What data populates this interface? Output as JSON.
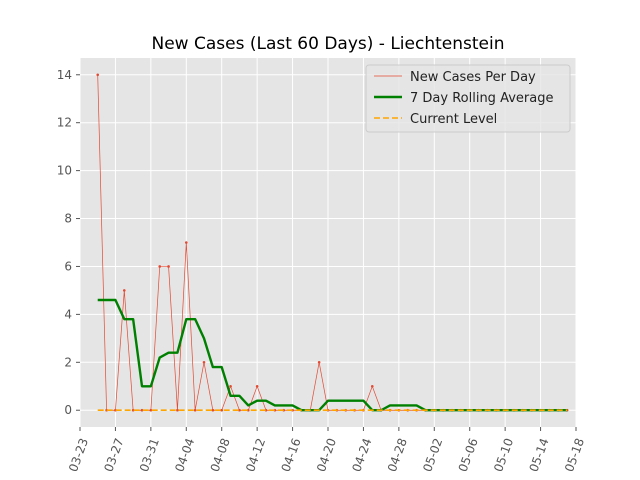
{
  "chart_data": {
    "type": "line",
    "title": "New Cases (Last 60 Days) - Liechtenstein",
    "xlabel": "",
    "ylabel": "",
    "x_axis": {
      "type": "date",
      "range": [
        "2020-03-23",
        "2020-05-18"
      ],
      "tick_labels": [
        "03-23",
        "03-27",
        "03-31",
        "04-04",
        "04-08",
        "04-12",
        "04-16",
        "04-20",
        "04-24",
        "04-28",
        "05-02",
        "05-06",
        "05-10",
        "05-14",
        "05-18"
      ],
      "tick_dates": [
        "2020-03-23",
        "2020-03-27",
        "2020-03-31",
        "2020-04-04",
        "2020-04-08",
        "2020-04-12",
        "2020-04-16",
        "2020-04-20",
        "2020-04-24",
        "2020-04-28",
        "2020-05-02",
        "2020-05-06",
        "2020-05-10",
        "2020-05-14",
        "2020-05-18"
      ]
    },
    "y_axis": {
      "range": [
        -0.7,
        14.7
      ],
      "ticks": [
        0,
        2,
        4,
        6,
        8,
        10,
        12,
        14
      ],
      "tick_labels": [
        "0",
        "2",
        "4",
        "6",
        "8",
        "10",
        "12",
        "14"
      ]
    },
    "grid": true,
    "legend": {
      "placement": "top-right"
    },
    "x": [
      "2020-03-25",
      "2020-03-26",
      "2020-03-27",
      "2020-03-28",
      "2020-03-29",
      "2020-03-30",
      "2020-03-31",
      "2020-04-01",
      "2020-04-02",
      "2020-04-03",
      "2020-04-04",
      "2020-04-05",
      "2020-04-06",
      "2020-04-07",
      "2020-04-08",
      "2020-04-09",
      "2020-04-10",
      "2020-04-11",
      "2020-04-12",
      "2020-04-13",
      "2020-04-14",
      "2020-04-15",
      "2020-04-16",
      "2020-04-17",
      "2020-04-18",
      "2020-04-19",
      "2020-04-20",
      "2020-04-21",
      "2020-04-22",
      "2020-04-23",
      "2020-04-24",
      "2020-04-25",
      "2020-04-26",
      "2020-04-27",
      "2020-04-28",
      "2020-04-29",
      "2020-04-30",
      "2020-05-01",
      "2020-05-02",
      "2020-05-03",
      "2020-05-04",
      "2020-05-05",
      "2020-05-06",
      "2020-05-07",
      "2020-05-08",
      "2020-05-09",
      "2020-05-10",
      "2020-05-11",
      "2020-05-12",
      "2020-05-13",
      "2020-05-14",
      "2020-05-15",
      "2020-05-16",
      "2020-05-17"
    ],
    "series": [
      {
        "name": "New Cases Per Day",
        "color": "#e24a33",
        "style": "thin-line-with-markers",
        "values": [
          14,
          0,
          0,
          5,
          0,
          0,
          0,
          6,
          6,
          0,
          7,
          0,
          2,
          0,
          0,
          1,
          0,
          0,
          1,
          0,
          0,
          0,
          0,
          0,
          0,
          2,
          0,
          0,
          0,
          0,
          0,
          1,
          0,
          0,
          0,
          0,
          0,
          0,
          0,
          0,
          0,
          0,
          0,
          0,
          0,
          0,
          0,
          0,
          0,
          0,
          0,
          0,
          0,
          0
        ]
      },
      {
        "name": "7 Day Rolling Average",
        "color": "#008000",
        "style": "thick-line",
        "values": [
          4.6,
          4.6,
          4.6,
          3.8,
          3.8,
          1.0,
          1.0,
          2.2,
          2.4,
          2.4,
          3.8,
          3.8,
          3.0,
          1.8,
          1.8,
          0.6,
          0.6,
          0.2,
          0.4,
          0.4,
          0.2,
          0.2,
          0.2,
          0.0,
          0.0,
          0.0,
          0.4,
          0.4,
          0.4,
          0.4,
          0.4,
          0.0,
          0.0,
          0.2,
          0.2,
          0.2,
          0.2,
          0.0,
          0.0,
          0.0,
          0.0,
          0.0,
          0.0,
          0.0,
          0.0,
          0.0,
          0.0,
          0.0,
          0.0,
          0.0,
          0.0,
          0.0,
          0.0,
          0.0
        ]
      },
      {
        "name": "Current Level",
        "color": "#ffa500",
        "style": "dashed",
        "values": [
          0,
          0,
          0,
          0,
          0,
          0,
          0,
          0,
          0,
          0,
          0,
          0,
          0,
          0,
          0,
          0,
          0,
          0,
          0,
          0,
          0,
          0,
          0,
          0,
          0,
          0,
          0,
          0,
          0,
          0,
          0,
          0,
          0,
          0,
          0,
          0,
          0,
          0,
          0,
          0,
          0,
          0,
          0,
          0,
          0,
          0,
          0,
          0,
          0,
          0,
          0,
          0,
          0,
          0
        ]
      }
    ]
  }
}
